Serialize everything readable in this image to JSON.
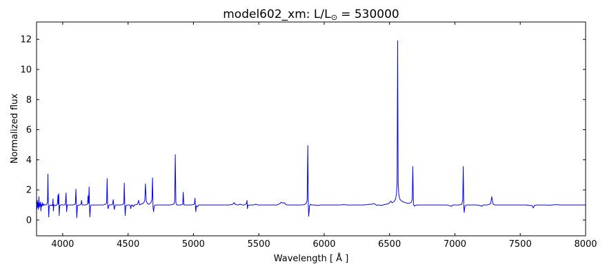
{
  "chart_data": {
    "type": "line",
    "title": "model602_xm: L/L⊙ = 530000",
    "title_prefix": "model602_xm: L/L",
    "title_sub": "⊙",
    "title_suffix": "= 530000",
    "xlabel": "Wavelength [ Å ]",
    "ylabel": "Normalized flux",
    "xlim": [
      3800,
      8000
    ],
    "ylim": [
      -1.05,
      13.15
    ],
    "xticks": [
      4000,
      4500,
      5000,
      5500,
      6000,
      6500,
      7000,
      7500,
      8000
    ],
    "yticks": [
      0,
      2,
      4,
      6,
      8,
      10,
      12
    ],
    "grid": false,
    "legend": false,
    "line_color": "#0000ff",
    "axis_color": "#000000",
    "background_color": "#ffffff",
    "series": [
      {
        "name": "normalized-flux-spectrum",
        "points": [
          [
            3800,
            1.0
          ],
          [
            3803,
            0.75
          ],
          [
            3806,
            1.3
          ],
          [
            3809,
            0.85
          ],
          [
            3812,
            1.15
          ],
          [
            3815,
            0.7
          ],
          [
            3818,
            1.55
          ],
          [
            3821,
            0.85
          ],
          [
            3824,
            1.1
          ],
          [
            3827,
            0.95
          ],
          [
            3830,
            1.2
          ],
          [
            3833,
            0.6
          ],
          [
            3837,
            1.05
          ],
          [
            3841,
            0.9
          ],
          [
            3845,
            1.15
          ],
          [
            3850,
            0.95
          ],
          [
            3855,
            1.05
          ],
          [
            3860,
            0.98
          ],
          [
            3866,
            1.02
          ],
          [
            3872,
            1.0
          ],
          [
            3878,
            1.05
          ],
          [
            3884,
            1.2
          ],
          [
            3887,
            3.05
          ],
          [
            3890,
            1.1
          ],
          [
            3893,
            0.2
          ],
          [
            3897,
            0.9
          ],
          [
            3903,
            1.0
          ],
          [
            3910,
            0.97
          ],
          [
            3916,
            1.0
          ],
          [
            3922,
            0.95
          ],
          [
            3926,
            1.4
          ],
          [
            3929,
            0.6
          ],
          [
            3933,
            1.0
          ],
          [
            3940,
            1.0
          ],
          [
            3947,
            0.95
          ],
          [
            3954,
            1.0
          ],
          [
            3960,
            1.1
          ],
          [
            3964,
            1.65
          ],
          [
            3967,
            1.05
          ],
          [
            3970,
            1.75
          ],
          [
            3973,
            0.3
          ],
          [
            3977,
            0.95
          ],
          [
            3984,
            1.0
          ],
          [
            3992,
            1.02
          ],
          [
            4000,
            1.0
          ],
          [
            4010,
            1.0
          ],
          [
            4020,
            1.02
          ],
          [
            4026,
            1.8
          ],
          [
            4030,
            0.55
          ],
          [
            4035,
            1.0
          ],
          [
            4045,
            1.0
          ],
          [
            4060,
            1.0
          ],
          [
            4075,
            1.0
          ],
          [
            4090,
            1.02
          ],
          [
            4097,
            1.1
          ],
          [
            4101,
            2.05
          ],
          [
            4105,
            0.95
          ],
          [
            4108,
            0.15
          ],
          [
            4113,
            0.95
          ],
          [
            4122,
            1.0
          ],
          [
            4132,
            1.0
          ],
          [
            4140,
            1.05
          ],
          [
            4144,
            1.3
          ],
          [
            4149,
            1.0
          ],
          [
            4158,
            1.0
          ],
          [
            4170,
            1.0
          ],
          [
            4182,
            1.02
          ],
          [
            4190,
            1.05
          ],
          [
            4194,
            1.6
          ],
          [
            4198,
            1.1
          ],
          [
            4202,
            2.2
          ],
          [
            4205,
            0.85
          ],
          [
            4208,
            0.2
          ],
          [
            4213,
            0.95
          ],
          [
            4222,
            1.0
          ],
          [
            4235,
            1.0
          ],
          [
            4252,
            1.0
          ],
          [
            4270,
            1.0
          ],
          [
            4290,
            1.0
          ],
          [
            4310,
            1.0
          ],
          [
            4328,
            1.05
          ],
          [
            4336,
            1.15
          ],
          [
            4340,
            2.75
          ],
          [
            4344,
            0.9
          ],
          [
            4348,
            0.75
          ],
          [
            4354,
            1.0
          ],
          [
            4366,
            1.0
          ],
          [
            4380,
            1.02
          ],
          [
            4387,
            1.35
          ],
          [
            4391,
            0.9
          ],
          [
            4395,
            0.7
          ],
          [
            4401,
            1.0
          ],
          [
            4415,
            1.0
          ],
          [
            4432,
            1.0
          ],
          [
            4450,
            1.0
          ],
          [
            4463,
            1.05
          ],
          [
            4468,
            1.15
          ],
          [
            4471,
            2.45
          ],
          [
            4475,
            0.95
          ],
          [
            4478,
            0.3
          ],
          [
            4483,
            0.95
          ],
          [
            4495,
            1.0
          ],
          [
            4508,
            1.0
          ],
          [
            4517,
            0.95
          ],
          [
            4521,
            0.75
          ],
          [
            4526,
            1.0
          ],
          [
            4535,
            0.98
          ],
          [
            4541,
            0.88
          ],
          [
            4548,
            1.0
          ],
          [
            4560,
            1.02
          ],
          [
            4572,
            1.05
          ],
          [
            4581,
            1.3
          ],
          [
            4587,
            1.0
          ],
          [
            4598,
            1.05
          ],
          [
            4610,
            1.08
          ],
          [
            4620,
            1.15
          ],
          [
            4628,
            1.3
          ],
          [
            4633,
            2.4
          ],
          [
            4639,
            1.25
          ],
          [
            4648,
            1.1
          ],
          [
            4658,
            1.05
          ],
          [
            4668,
            1.1
          ],
          [
            4678,
            1.2
          ],
          [
            4683,
            1.4
          ],
          [
            4687,
            2.8
          ],
          [
            4691,
            0.85
          ],
          [
            4695,
            0.55
          ],
          [
            4701,
            0.95
          ],
          [
            4712,
            1.0
          ],
          [
            4730,
            1.0
          ],
          [
            4755,
            1.0
          ],
          [
            4785,
            1.0
          ],
          [
            4815,
            1.0
          ],
          [
            4840,
            1.02
          ],
          [
            4852,
            1.08
          ],
          [
            4857,
            1.3
          ],
          [
            4861,
            4.35
          ],
          [
            4866,
            1.15
          ],
          [
            4872,
            1.0
          ],
          [
            4885,
            1.0
          ],
          [
            4900,
            1.0
          ],
          [
            4912,
            1.02
          ],
          [
            4918,
            1.05
          ],
          [
            4922,
            1.85
          ],
          [
            4927,
            1.0
          ],
          [
            4940,
            1.0
          ],
          [
            4958,
            1.0
          ],
          [
            4980,
            1.0
          ],
          [
            5000,
            1.02
          ],
          [
            5008,
            1.08
          ],
          [
            5012,
            1.45
          ],
          [
            5015,
            0.95
          ],
          [
            5018,
            0.55
          ],
          [
            5023,
            0.95
          ],
          [
            5032,
            0.88
          ],
          [
            5040,
            1.0
          ],
          [
            5060,
            1.0
          ],
          [
            5090,
            1.0
          ],
          [
            5125,
            1.0
          ],
          [
            5160,
            1.0
          ],
          [
            5200,
            1.0
          ],
          [
            5240,
            1.0
          ],
          [
            5275,
            1.0
          ],
          [
            5302,
            1.05
          ],
          [
            5312,
            1.15
          ],
          [
            5322,
            1.02
          ],
          [
            5340,
            1.0
          ],
          [
            5358,
            1.05
          ],
          [
            5372,
            1.0
          ],
          [
            5390,
            1.0
          ],
          [
            5405,
            1.08
          ],
          [
            5410,
            1.3
          ],
          [
            5413,
            0.75
          ],
          [
            5418,
            0.98
          ],
          [
            5435,
            1.0
          ],
          [
            5460,
            1.0
          ],
          [
            5478,
            1.05
          ],
          [
            5492,
            1.0
          ],
          [
            5515,
            1.0
          ],
          [
            5540,
            1.0
          ],
          [
            5565,
            1.0
          ],
          [
            5590,
            1.0
          ],
          [
            5615,
            1.0
          ],
          [
            5640,
            1.0
          ],
          [
            5660,
            1.08
          ],
          [
            5672,
            1.18
          ],
          [
            5684,
            1.12
          ],
          [
            5696,
            1.15
          ],
          [
            5706,
            1.02
          ],
          [
            5725,
            1.0
          ],
          [
            5750,
            1.0
          ],
          [
            5775,
            1.0
          ],
          [
            5800,
            1.0
          ],
          [
            5825,
            1.0
          ],
          [
            5848,
            1.02
          ],
          [
            5862,
            1.1
          ],
          [
            5870,
            1.3
          ],
          [
            5875,
            4.95
          ],
          [
            5879,
            0.85
          ],
          [
            5882,
            0.25
          ],
          [
            5888,
            0.92
          ],
          [
            5895,
            1.05
          ],
          [
            5905,
            1.0
          ],
          [
            5925,
            1.0
          ],
          [
            5950,
            0.97
          ],
          [
            5975,
            1.0
          ],
          [
            6000,
            1.0
          ],
          [
            6030,
            1.0
          ],
          [
            6060,
            1.0
          ],
          [
            6090,
            1.0
          ],
          [
            6120,
            1.0
          ],
          [
            6150,
            1.02
          ],
          [
            6180,
            1.0
          ],
          [
            6210,
            1.0
          ],
          [
            6240,
            1.0
          ],
          [
            6270,
            1.0
          ],
          [
            6300,
            1.0
          ],
          [
            6330,
            1.02
          ],
          [
            6360,
            1.05
          ],
          [
            6385,
            1.08
          ],
          [
            6400,
            0.98
          ],
          [
            6420,
            1.0
          ],
          [
            6440,
            0.97
          ],
          [
            6458,
            1.02
          ],
          [
            6475,
            1.05
          ],
          [
            6495,
            1.1
          ],
          [
            6510,
            1.25
          ],
          [
            6520,
            1.15
          ],
          [
            6532,
            1.2
          ],
          [
            6545,
            1.35
          ],
          [
            6553,
            1.7
          ],
          [
            6558,
            2.5
          ],
          [
            6562,
            11.9
          ],
          [
            6566,
            2.5
          ],
          [
            6571,
            1.7
          ],
          [
            6578,
            1.4
          ],
          [
            6590,
            1.28
          ],
          [
            6605,
            1.2
          ],
          [
            6622,
            1.15
          ],
          [
            6640,
            1.1
          ],
          [
            6655,
            1.12
          ],
          [
            6668,
            1.2
          ],
          [
            6674,
            1.4
          ],
          [
            6678,
            3.55
          ],
          [
            6683,
            1.05
          ],
          [
            6690,
            0.92
          ],
          [
            6700,
            0.98
          ],
          [
            6715,
            1.0
          ],
          [
            6740,
            1.0
          ],
          [
            6770,
            1.0
          ],
          [
            6800,
            1.0
          ],
          [
            6830,
            1.0
          ],
          [
            6858,
            1.0
          ],
          [
            6885,
            1.0
          ],
          [
            6910,
            1.0
          ],
          [
            6938,
            1.0
          ],
          [
            6962,
            0.95
          ],
          [
            6972,
            0.9
          ],
          [
            6985,
            1.0
          ],
          [
            7010,
            1.0
          ],
          [
            7035,
            1.0
          ],
          [
            7052,
            1.05
          ],
          [
            7060,
            1.3
          ],
          [
            7064,
            3.55
          ],
          [
            7068,
            0.95
          ],
          [
            7071,
            0.5
          ],
          [
            7077,
            0.92
          ],
          [
            7088,
            1.0
          ],
          [
            7110,
            1.0
          ],
          [
            7140,
            1.0
          ],
          [
            7170,
            1.0
          ],
          [
            7198,
            0.95
          ],
          [
            7206,
            0.9
          ],
          [
            7218,
            1.0
          ],
          [
            7240,
            1.0
          ],
          [
            7262,
            1.03
          ],
          [
            7274,
            1.1
          ],
          [
            7282,
            1.55
          ],
          [
            7292,
            1.05
          ],
          [
            7305,
            1.0
          ],
          [
            7330,
            1.0
          ],
          [
            7360,
            1.0
          ],
          [
            7395,
            1.0
          ],
          [
            7430,
            1.0
          ],
          [
            7465,
            1.0
          ],
          [
            7500,
            1.0
          ],
          [
            7535,
            1.0
          ],
          [
            7565,
            0.98
          ],
          [
            7592,
            0.95
          ],
          [
            7600,
            0.8
          ],
          [
            7609,
            0.97
          ],
          [
            7630,
            1.0
          ],
          [
            7660,
            1.0
          ],
          [
            7695,
            1.0
          ],
          [
            7726,
            0.98
          ],
          [
            7740,
            1.0
          ],
          [
            7775,
            1.02
          ],
          [
            7810,
            1.0
          ],
          [
            7845,
            1.0
          ],
          [
            7880,
            1.0
          ],
          [
            7915,
            1.0
          ],
          [
            7950,
            1.0
          ],
          [
            7975,
            1.0
          ],
          [
            8000,
            1.0
          ]
        ]
      }
    ]
  }
}
